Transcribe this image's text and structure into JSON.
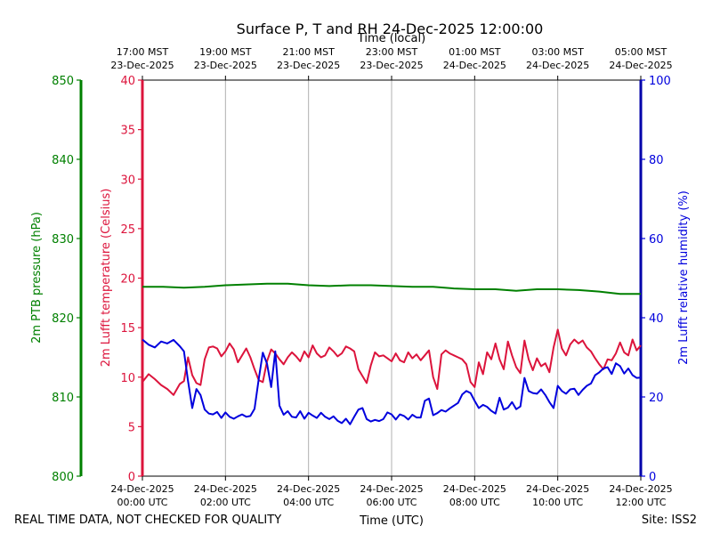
{
  "chart_data": {
    "type": "line",
    "title": "Surface P, T and RH 24-Dec-2025 12:00:00",
    "top_axis_label": "Time (local)",
    "bottom_axis_label": "Time (UTC)",
    "footer_left": "REAL TIME DATA, NOT CHECKED FOR QUALITY",
    "footer_right": "Site: ISS2",
    "x_range_hours": [
      0,
      12
    ],
    "bottom_ticks": [
      {
        "hour": 0,
        "line1": "24-Dec-2025",
        "line2": "00:00 UTC"
      },
      {
        "hour": 2,
        "line1": "24-Dec-2025",
        "line2": "02:00 UTC"
      },
      {
        "hour": 4,
        "line1": "24-Dec-2025",
        "line2": "04:00 UTC"
      },
      {
        "hour": 6,
        "line1": "24-Dec-2025",
        "line2": "06:00 UTC"
      },
      {
        "hour": 8,
        "line1": "24-Dec-2025",
        "line2": "08:00 UTC"
      },
      {
        "hour": 10,
        "line1": "24-Dec-2025",
        "line2": "10:00 UTC"
      },
      {
        "hour": 12,
        "line1": "24-Dec-2025",
        "line2": "12:00 UTC"
      }
    ],
    "top_ticks": [
      {
        "hour": 0,
        "line1": "17:00 MST",
        "line2": "23-Dec-2025"
      },
      {
        "hour": 2,
        "line1": "19:00 MST",
        "line2": "23-Dec-2025"
      },
      {
        "hour": 4,
        "line1": "21:00 MST",
        "line2": "23-Dec-2025"
      },
      {
        "hour": 6,
        "line1": "23:00 MST",
        "line2": "23-Dec-2025"
      },
      {
        "hour": 8,
        "line1": "01:00 MST",
        "line2": "24-Dec-2025"
      },
      {
        "hour": 10,
        "line1": "03:00 MST",
        "line2": "24-Dec-2025"
      },
      {
        "hour": 12,
        "line1": "05:00 MST",
        "line2": "24-Dec-2025"
      }
    ],
    "axes": {
      "pressure": {
        "label": "2m PTB pressure (hPa)",
        "color": "#008000",
        "ylim": [
          800,
          850
        ],
        "ticks": [
          "800",
          "810",
          "820",
          "830",
          "840",
          "850"
        ]
      },
      "temperature": {
        "label": "2m Lufft temperature (Celsius)",
        "color": "#dc143c",
        "ylim": [
          0,
          40
        ],
        "ticks": [
          "0",
          "5",
          "10",
          "15",
          "20",
          "25",
          "30",
          "35",
          "40"
        ]
      },
      "humidity": {
        "label": "2m Lufft relative humidity (%)",
        "color": "#0000dd",
        "ylim": [
          0,
          100
        ],
        "ticks": [
          "0",
          "20",
          "40",
          "60",
          "80",
          "100"
        ]
      }
    },
    "series": [
      {
        "name": "pressure",
        "axis": "pressure",
        "color": "#008000",
        "x": [
          0,
          0.5,
          1,
          1.5,
          2,
          2.5,
          3,
          3.5,
          4,
          4.5,
          5,
          5.5,
          6,
          6.5,
          7,
          7.5,
          8,
          8.5,
          9,
          9.5,
          10,
          10.5,
          11,
          11.5,
          12
        ],
        "y": [
          823.9,
          823.9,
          823.8,
          823.9,
          824.1,
          824.2,
          824.3,
          824.3,
          824.1,
          824.0,
          824.1,
          824.1,
          824.0,
          823.9,
          823.9,
          823.7,
          823.6,
          823.6,
          823.4,
          823.6,
          823.6,
          823.5,
          823.3,
          823.0,
          823.0
        ]
      },
      {
        "name": "temperature",
        "axis": "temperature",
        "color": "#dc143c",
        "x": [
          0,
          0.15,
          0.3,
          0.45,
          0.6,
          0.75,
          0.9,
          1.0,
          1.1,
          1.2,
          1.3,
          1.4,
          1.5,
          1.6,
          1.7,
          1.8,
          1.9,
          2.0,
          2.1,
          2.2,
          2.3,
          2.4,
          2.5,
          2.6,
          2.7,
          2.8,
          2.9,
          3.0,
          3.1,
          3.2,
          3.3,
          3.4,
          3.5,
          3.6,
          3.7,
          3.8,
          3.9,
          4.0,
          4.1,
          4.2,
          4.3,
          4.4,
          4.5,
          4.6,
          4.7,
          4.8,
          4.9,
          5.0,
          5.1,
          5.2,
          5.3,
          5.4,
          5.5,
          5.6,
          5.7,
          5.8,
          5.9,
          6.0,
          6.1,
          6.2,
          6.3,
          6.4,
          6.5,
          6.6,
          6.7,
          6.8,
          6.9,
          7.0,
          7.1,
          7.2,
          7.3,
          7.4,
          7.5,
          7.6,
          7.7,
          7.8,
          7.9,
          8.0,
          8.1,
          8.2,
          8.3,
          8.4,
          8.5,
          8.6,
          8.7,
          8.8,
          8.9,
          9.0,
          9.1,
          9.2,
          9.3,
          9.4,
          9.5,
          9.6,
          9.7,
          9.8,
          9.9,
          10.0,
          10.1,
          10.2,
          10.3,
          10.4,
          10.5,
          10.6,
          10.7,
          10.8,
          10.9,
          11.0,
          11.1,
          11.2,
          11.3,
          11.4,
          11.5,
          11.6,
          11.7,
          11.8,
          11.9,
          12.0
        ],
        "y": [
          9.5,
          10.3,
          9.8,
          9.2,
          8.8,
          8.2,
          9.3,
          9.6,
          12.0,
          10.2,
          9.4,
          9.2,
          11.8,
          13.0,
          13.1,
          12.9,
          12.1,
          12.6,
          13.4,
          12.8,
          11.5,
          12.2,
          12.9,
          12.0,
          10.8,
          9.7,
          9.5,
          11.6,
          12.8,
          12.4,
          11.8,
          11.3,
          12.0,
          12.5,
          12.1,
          11.6,
          12.6,
          12.0,
          13.2,
          12.4,
          12.0,
          12.2,
          13.0,
          12.6,
          12.1,
          12.4,
          13.1,
          12.9,
          12.6,
          10.8,
          10.1,
          9.4,
          11.2,
          12.5,
          12.1,
          12.2,
          11.9,
          11.6,
          12.4,
          11.7,
          11.5,
          12.5,
          11.9,
          12.3,
          11.7,
          12.2,
          12.7,
          10.0,
          8.8,
          12.3,
          12.7,
          12.4,
          12.2,
          12.0,
          11.8,
          11.3,
          9.5,
          9.0,
          11.5,
          10.3,
          12.5,
          11.8,
          13.4,
          11.8,
          10.8,
          13.6,
          12.2,
          11.0,
          10.4,
          13.7,
          11.8,
          10.7,
          11.9,
          11.1,
          11.4,
          10.5,
          13.0,
          14.8,
          12.9,
          12.2,
          13.3,
          13.8,
          13.4,
          13.7,
          13.0,
          12.6,
          11.9,
          11.3,
          10.8,
          11.8,
          11.7,
          12.4,
          13.5,
          12.5,
          12.2,
          13.8,
          12.7,
          13.2
        ]
      },
      {
        "name": "humidity",
        "axis": "humidity",
        "color": "#0000dd",
        "x": [
          0,
          0.15,
          0.3,
          0.45,
          0.6,
          0.75,
          0.9,
          1.0,
          1.1,
          1.2,
          1.3,
          1.4,
          1.5,
          1.6,
          1.7,
          1.8,
          1.9,
          2.0,
          2.1,
          2.2,
          2.3,
          2.4,
          2.5,
          2.6,
          2.7,
          2.8,
          2.9,
          3.0,
          3.1,
          3.2,
          3.3,
          3.4,
          3.5,
          3.6,
          3.7,
          3.8,
          3.9,
          4.0,
          4.1,
          4.2,
          4.3,
          4.4,
          4.5,
          4.6,
          4.7,
          4.8,
          4.9,
          5.0,
          5.1,
          5.2,
          5.3,
          5.4,
          5.5,
          5.6,
          5.7,
          5.8,
          5.9,
          6.0,
          6.1,
          6.2,
          6.3,
          6.4,
          6.5,
          6.6,
          6.7,
          6.8,
          6.9,
          7.0,
          7.1,
          7.2,
          7.3,
          7.4,
          7.5,
          7.6,
          7.7,
          7.8,
          7.9,
          8.0,
          8.1,
          8.2,
          8.3,
          8.4,
          8.5,
          8.6,
          8.7,
          8.8,
          8.9,
          9.0,
          9.1,
          9.2,
          9.3,
          9.4,
          9.5,
          9.6,
          9.7,
          9.8,
          9.9,
          10.0,
          10.1,
          10.2,
          10.3,
          10.4,
          10.5,
          10.6,
          10.7,
          10.8,
          10.9,
          11.0,
          11.1,
          11.2,
          11.3,
          11.4,
          11.5,
          11.6,
          11.7,
          11.8,
          11.9,
          12.0
        ],
        "y": [
          34.5,
          33.2,
          32.5,
          34.0,
          33.5,
          34.4,
          32.8,
          31.5,
          24.0,
          17.2,
          22.0,
          20.5,
          16.8,
          15.8,
          15.6,
          16.2,
          14.7,
          16.1,
          15.0,
          14.5,
          15.1,
          15.6,
          15.0,
          15.2,
          17.0,
          24.5,
          31.2,
          28.4,
          22.5,
          31.5,
          17.8,
          15.5,
          16.4,
          15.0,
          14.8,
          16.4,
          14.5,
          16.0,
          15.3,
          14.7,
          16.0,
          15.0,
          14.4,
          15.1,
          14.0,
          13.4,
          14.5,
          13.1,
          15.0,
          16.8,
          17.2,
          14.4,
          13.8,
          14.2,
          13.9,
          14.4,
          16.1,
          15.6,
          14.3,
          15.6,
          15.2,
          14.3,
          15.5,
          14.8,
          14.8,
          19.0,
          19.6,
          15.4,
          15.9,
          16.7,
          16.3,
          17.1,
          17.8,
          18.5,
          20.6,
          21.5,
          21.0,
          19.0,
          17.2,
          18.0,
          17.5,
          16.5,
          15.8,
          19.8,
          16.8,
          17.3,
          18.7,
          16.9,
          17.6,
          24.8,
          21.5,
          21.0,
          20.8,
          21.9,
          20.5,
          18.7,
          17.2,
          22.8,
          21.5,
          20.8,
          21.9,
          22.1,
          20.5,
          21.8,
          22.8,
          23.4,
          25.5,
          26.2,
          27.2,
          27.5,
          25.8,
          28.5,
          27.8,
          25.9,
          27.2,
          25.5,
          24.8,
          24.9
        ]
      }
    ]
  }
}
